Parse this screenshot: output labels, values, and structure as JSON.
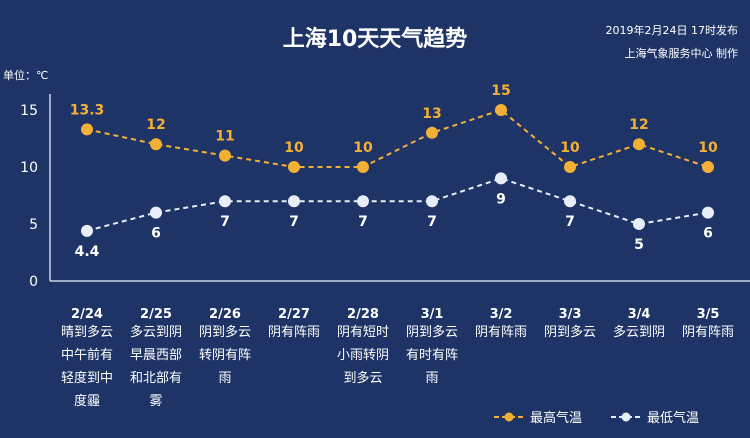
{
  "chart_data": {
    "type": "line",
    "title": "上海10天天气趋势",
    "publish_time": "2019年2月24日 17时发布",
    "producer": "上海气象服务中心  制作",
    "unit_label": "单位：℃",
    "ylim": [
      0,
      15
    ],
    "yticks": [
      0,
      5,
      10,
      15
    ],
    "categories": [
      "2/24",
      "2/25",
      "2/26",
      "2/27",
      "2/28",
      "3/1",
      "3/2",
      "3/3",
      "3/4",
      "3/5"
    ],
    "descriptions": [
      [
        "晴到多云",
        "中午前有",
        "轻度到中",
        "度霾"
      ],
      [
        "多云到阴",
        "早晨西部",
        "和北部有",
        "雾"
      ],
      [
        "阴到多云",
        "转阴有阵",
        "雨"
      ],
      [
        "阴有阵雨"
      ],
      [
        "阴有短时",
        "小雨转阴",
        "到多云"
      ],
      [
        "阴到多云",
        "有时有阵",
        "雨"
      ],
      [
        "阴有阵雨"
      ],
      [
        "阴到多云"
      ],
      [
        "多云到阴"
      ],
      [
        "阴有阵雨"
      ]
    ],
    "series": [
      {
        "name": "最高气温",
        "color": "#f2b035",
        "values": [
          13.3,
          12,
          11,
          10,
          10,
          13,
          15,
          10,
          12,
          10
        ],
        "labels": [
          "13.3",
          "12",
          "11",
          "10",
          "10",
          "13",
          "15",
          "10",
          "12",
          "10"
        ]
      },
      {
        "name": "最低气温",
        "color": "#e8eef8",
        "values": [
          4.4,
          6,
          7,
          7,
          7,
          7,
          9,
          7,
          5,
          6
        ],
        "labels": [
          "4.4",
          "6",
          "7",
          "7",
          "7",
          "7",
          "9",
          "7",
          "5",
          "6"
        ]
      }
    ],
    "legend_position": "bottom-right",
    "grid": false
  }
}
